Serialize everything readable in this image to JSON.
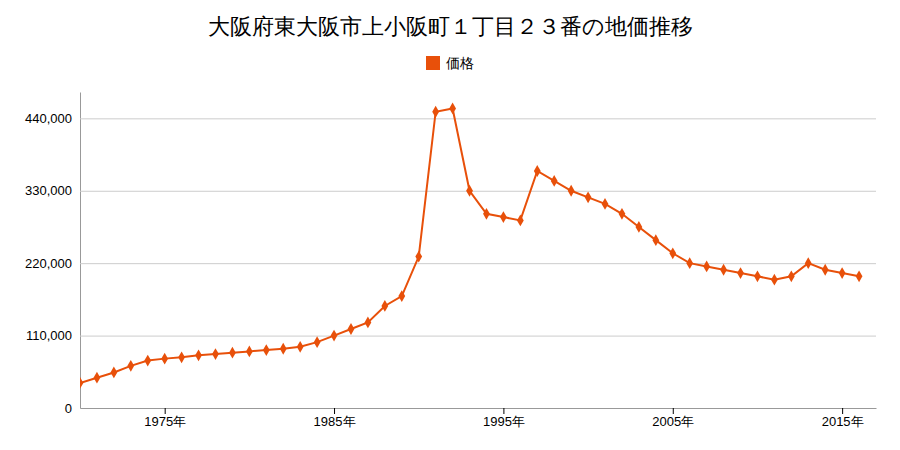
{
  "chart_data": {
    "type": "line",
    "title": "大阪府東大阪市上小阪町１丁目２３番の地価推移",
    "x": [
      1970,
      1971,
      1972,
      1973,
      1974,
      1975,
      1976,
      1977,
      1978,
      1979,
      1980,
      1981,
      1982,
      1983,
      1984,
      1985,
      1986,
      1987,
      1988,
      1989,
      1990,
      1991,
      1992,
      1993,
      1994,
      1995,
      1996,
      1997,
      1998,
      1999,
      2000,
      2001,
      2002,
      2003,
      2004,
      2005,
      2006,
      2007,
      2008,
      2009,
      2010,
      2011,
      2012,
      2013,
      2014,
      2015,
      2016
    ],
    "series": [
      {
        "name": "価格",
        "color": "#e8500a",
        "marker": "diamond",
        "line_style": "solid",
        "values": [
          38000,
          46000,
          54000,
          64000,
          72000,
          75000,
          77000,
          80000,
          82000,
          84000,
          86000,
          88000,
          90000,
          93000,
          100000,
          110000,
          120000,
          130000,
          155000,
          170000,
          230000,
          450000,
          455000,
          330000,
          295000,
          290000,
          285000,
          360000,
          345000,
          330000,
          320000,
          310000,
          295000,
          275000,
          255000,
          235000,
          220000,
          215000,
          210000,
          205000,
          200000,
          195000,
          200000,
          220000,
          210000,
          205000,
          200000
        ]
      }
    ],
    "xlim": [
      1970,
      2017
    ],
    "xticks": [
      {
        "value": 1975,
        "label": "1975年"
      },
      {
        "value": 1985,
        "label": "1985年"
      },
      {
        "value": 1995,
        "label": "1995年"
      },
      {
        "value": 2005,
        "label": "2005年"
      },
      {
        "value": 2015,
        "label": "2015年"
      }
    ],
    "ylim": [
      0,
      480000
    ],
    "yticks": [
      0,
      {
        "value": 110000,
        "label": "110,000"
      },
      {
        "value": 220000,
        "label": "220,000"
      },
      {
        "value": 330000,
        "label": "330,000"
      },
      {
        "value": 440000,
        "label": "440,000"
      }
    ],
    "grid": true,
    "legend": "top"
  }
}
